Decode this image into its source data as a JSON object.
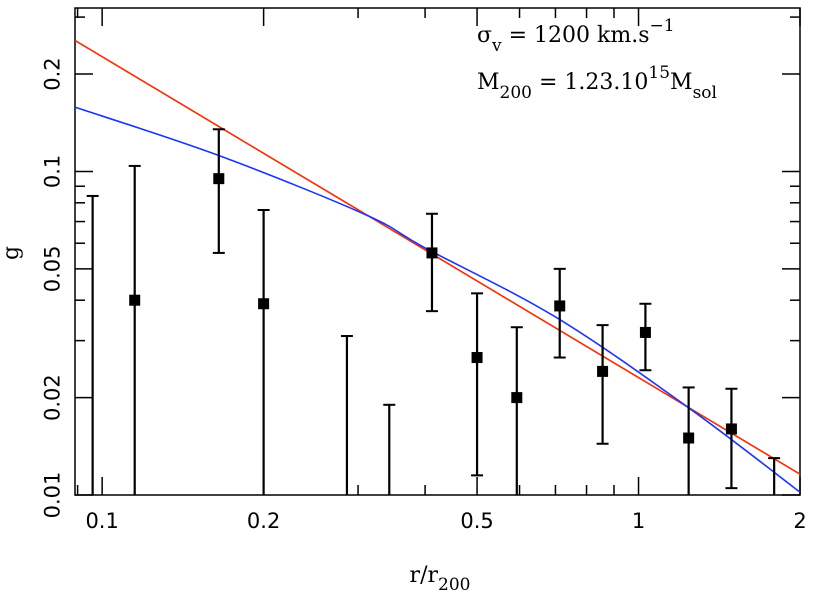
{
  "chart_data": {
    "type": "scatter",
    "xlabel": "r/r",
    "xlabel_sub": "200",
    "ylabel": "g",
    "xscale": "log",
    "yscale": "log",
    "xlim": [
      0.089,
      2
    ],
    "ylim": [
      0.01,
      0.32
    ],
    "xticks": [
      {
        "v": 0.1,
        "label": "0.1"
      },
      {
        "v": 0.2,
        "label": "0.2"
      },
      {
        "v": 0.5,
        "label": "0.5"
      },
      {
        "v": 1,
        "label": "1"
      },
      {
        "v": 2,
        "label": "2"
      }
    ],
    "yticks": [
      {
        "v": 0.01,
        "label": "0.01"
      },
      {
        "v": 0.02,
        "label": "0.02"
      },
      {
        "v": 0.05,
        "label": "0.05"
      },
      {
        "v": 0.1,
        "label": "0.1"
      },
      {
        "v": 0.2,
        "label": "0.2"
      }
    ],
    "points": [
      {
        "x": 0.096,
        "y": null,
        "hi": 0.084,
        "lo": 0.01
      },
      {
        "x": 0.115,
        "y": 0.04,
        "hi": 0.104,
        "lo": 0.01
      },
      {
        "x": 0.165,
        "y": 0.095,
        "hi": 0.135,
        "lo": 0.056
      },
      {
        "x": 0.2,
        "y": 0.039,
        "hi": 0.076,
        "lo": 0.01
      },
      {
        "x": 0.286,
        "y": null,
        "hi": 0.031,
        "lo": 0.01
      },
      {
        "x": 0.343,
        "y": null,
        "hi": 0.019,
        "lo": 0.01
      },
      {
        "x": 0.412,
        "y": 0.056,
        "hi": 0.074,
        "lo": 0.037
      },
      {
        "x": 0.5,
        "y": 0.0266,
        "hi": 0.042,
        "lo": 0.0115
      },
      {
        "x": 0.593,
        "y": 0.02,
        "hi": 0.033,
        "lo": 0.01
      },
      {
        "x": 0.713,
        "y": 0.0384,
        "hi": 0.05,
        "lo": 0.0266
      },
      {
        "x": 0.857,
        "y": 0.0241,
        "hi": 0.0335,
        "lo": 0.0144
      },
      {
        "x": 1.03,
        "y": 0.0318,
        "hi": 0.039,
        "lo": 0.0243
      },
      {
        "x": 1.24,
        "y": 0.015,
        "hi": 0.0215,
        "lo": 0.01
      },
      {
        "x": 1.49,
        "y": 0.016,
        "hi": 0.0213,
        "lo": 0.0105
      },
      {
        "x": 1.79,
        "y": null,
        "hi": 0.013,
        "lo": 0.01
      }
    ],
    "series": [
      {
        "color": "#ff2a00",
        "x": [
          0.089,
          2
        ],
        "y": [
          0.254,
          0.0116
        ]
      },
      {
        "color": "#1a35ff",
        "x": [
          0.089,
          0.165,
          0.31,
          0.4,
          0.7,
          1.24,
          2
        ],
        "y": [
          0.158,
          0.112,
          0.0735,
          0.058,
          0.0355,
          0.0186,
          0.0102
        ]
      }
    ],
    "annotations": [
      {
        "color": "#ff2a00",
        "parts": [
          "σ",
          "v",
          " = 1200 km.s",
          "−1",
          ""
        ]
      },
      {
        "color": "#1a35ff",
        "parts": [
          "M",
          "200",
          " = 1.23.10",
          "15",
          "M",
          "sol"
        ]
      }
    ]
  }
}
